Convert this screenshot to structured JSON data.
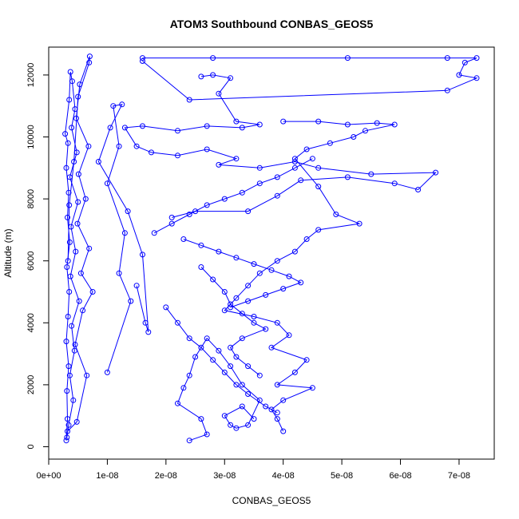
{
  "chart_data": {
    "type": "scatter",
    "title": "ATOM3 Southbound CONBAS_GEOS5",
    "xlabel": "CONBAS_GEOS5",
    "ylabel": "Altitude (m)",
    "xlim": [
      0,
      7.6e-08
    ],
    "ylim": [
      -400,
      12900
    ],
    "x_ticks": [
      {
        "value": 0,
        "label": "0e+00"
      },
      {
        "value": 1e-08,
        "label": "1e-08"
      },
      {
        "value": 2e-08,
        "label": "2e-08"
      },
      {
        "value": 3e-08,
        "label": "3e-08"
      },
      {
        "value": 4e-08,
        "label": "4e-08"
      },
      {
        "value": 5e-08,
        "label": "5e-08"
      },
      {
        "value": 6e-08,
        "label": "6e-08"
      },
      {
        "value": 7e-08,
        "label": "7e-08"
      }
    ],
    "y_ticks": [
      {
        "value": 0,
        "label": "0"
      },
      {
        "value": 2000,
        "label": "2000"
      },
      {
        "value": 4000,
        "label": "4000"
      },
      {
        "value": 6000,
        "label": "6000"
      },
      {
        "value": 8000,
        "label": "8000"
      },
      {
        "value": 10000,
        "label": "10000"
      },
      {
        "value": 12000,
        "label": "12000"
      }
    ],
    "grid": false,
    "marker": "open-circle",
    "connected": true,
    "color": "#0000ff",
    "series": [
      {
        "points": [
          [
            3e-09,
            200
          ],
          [
            3.2e-09,
            900
          ],
          [
            3.1e-09,
            1800
          ],
          [
            3.4e-09,
            2600
          ],
          [
            3e-09,
            3400
          ],
          [
            3.3e-09,
            4200
          ],
          [
            3.5e-09,
            5000
          ],
          [
            3.1e-09,
            5800
          ],
          [
            3.6e-09,
            6600
          ],
          [
            3.2e-09,
            7400
          ],
          [
            3.4e-09,
            8200
          ],
          [
            3e-09,
            9000
          ],
          [
            3.3e-09,
            9800
          ],
          [
            2.8e-09,
            10100
          ],
          [
            3.5e-09,
            11200
          ],
          [
            3.7e-09,
            12100
          ],
          [
            4e-09,
            11800
          ],
          [
            4.5e-09,
            10900
          ],
          [
            3.9e-09,
            10300
          ],
          [
            4.8e-09,
            9500
          ],
          [
            3.6e-09,
            8700
          ],
          [
            5e-09,
            7900
          ],
          [
            3.8e-09,
            7100
          ],
          [
            4.6e-09,
            6300
          ],
          [
            3.7e-09,
            5500
          ],
          [
            5.2e-09,
            4700
          ],
          [
            3.9e-09,
            3900
          ],
          [
            4.4e-09,
            3100
          ],
          [
            3.6e-09,
            2300
          ],
          [
            4.2e-09,
            1500
          ],
          [
            3.4e-09,
            700
          ],
          [
            3.1e-09,
            300
          ]
        ]
      },
      {
        "points": [
          [
            3.2e-09,
            500
          ],
          [
            4.8e-09,
            800
          ],
          [
            6.5e-09,
            2300
          ],
          [
            4.5e-09,
            3300
          ],
          [
            5.8e-09,
            4400
          ],
          [
            7.5e-09,
            5000
          ],
          [
            5.5e-09,
            5600
          ],
          [
            6.9e-09,
            6400
          ],
          [
            4.9e-09,
            7200
          ],
          [
            6.3e-09,
            8000
          ],
          [
            5.1e-09,
            8800
          ],
          [
            6.8e-09,
            9700
          ],
          [
            4.7e-09,
            10600
          ],
          [
            5.3e-09,
            11700
          ],
          [
            7e-09,
            12600
          ],
          [
            6.9e-09,
            12400
          ],
          [
            5e-09,
            11300
          ],
          [
            4.3e-09,
            9200
          ],
          [
            3.5e-09,
            7800
          ],
          [
            3.3e-09,
            6000
          ]
        ]
      },
      {
        "points": [
          [
            1e-08,
            2400
          ],
          [
            1.4e-08,
            4700
          ],
          [
            1.2e-08,
            5600
          ],
          [
            1.3e-08,
            6900
          ],
          [
            1e-08,
            8500
          ],
          [
            1.2e-08,
            9700
          ],
          [
            1.1e-08,
            11000
          ],
          [
            1.25e-08,
            11050
          ],
          [
            1.05e-08,
            10300
          ],
          [
            8.5e-09,
            9200
          ],
          [
            1.35e-08,
            7600
          ],
          [
            1.6e-08,
            6200
          ],
          [
            1.7e-08,
            3700
          ],
          [
            1.65e-08,
            4000
          ],
          [
            1.5e-08,
            5200
          ]
        ]
      },
      {
        "points": [
          [
            1.6e-08,
            12550
          ],
          [
            2.8e-08,
            12550
          ],
          [
            5.1e-08,
            12550
          ],
          [
            6.8e-08,
            12550
          ],
          [
            7.3e-08,
            12550
          ],
          [
            7.1e-08,
            12400
          ],
          [
            7e-08,
            12000
          ],
          [
            7.3e-08,
            11900
          ],
          [
            6.8e-08,
            11500
          ],
          [
            2.4e-08,
            11200
          ],
          [
            1.6e-08,
            12450
          ]
        ]
      },
      {
        "points": [
          [
            2.6e-08,
            11950
          ],
          [
            2.8e-08,
            12000
          ],
          [
            3.1e-08,
            11900
          ],
          [
            2.9e-08,
            11400
          ],
          [
            3.2e-08,
            10500
          ],
          [
            3.6e-08,
            10400
          ],
          [
            3.3e-08,
            10300
          ],
          [
            2.7e-08,
            10350
          ],
          [
            2.2e-08,
            10200
          ],
          [
            1.6e-08,
            10350
          ],
          [
            1.3e-08,
            10300
          ],
          [
            1.5e-08,
            9700
          ],
          [
            1.75e-08,
            9500
          ],
          [
            2.2e-08,
            9400
          ],
          [
            2.7e-08,
            9600
          ],
          [
            3.2e-08,
            9300
          ],
          [
            2.9e-08,
            9100
          ],
          [
            3.6e-08,
            9000
          ],
          [
            4.2e-08,
            9200
          ],
          [
            4.6e-08,
            9000
          ],
          [
            5.5e-08,
            8800
          ],
          [
            6.6e-08,
            8850
          ],
          [
            6.3e-08,
            8300
          ],
          [
            5.9e-08,
            8500
          ],
          [
            5.1e-08,
            8700
          ],
          [
            4.3e-08,
            8600
          ],
          [
            3.9e-08,
            8100
          ],
          [
            3.4e-08,
            7600
          ],
          [
            2.5e-08,
            7600
          ],
          [
            2.1e-08,
            7400
          ]
        ]
      },
      {
        "points": [
          [
            4e-08,
            10500
          ],
          [
            4.6e-08,
            10500
          ],
          [
            5.1e-08,
            10400
          ],
          [
            5.6e-08,
            10450
          ],
          [
            5.9e-08,
            10400
          ],
          [
            5.4e-08,
            10200
          ],
          [
            5.2e-08,
            10000
          ],
          [
            4.8e-08,
            9800
          ],
          [
            4.4e-08,
            9600
          ],
          [
            4.2e-08,
            9300
          ],
          [
            4.6e-08,
            8400
          ],
          [
            4.9e-08,
            7500
          ],
          [
            5.3e-08,
            7200
          ],
          [
            4.6e-08,
            7000
          ],
          [
            4.4e-08,
            6700
          ],
          [
            4.2e-08,
            6300
          ],
          [
            3.9e-08,
            6000
          ],
          [
            3.6e-08,
            5600
          ],
          [
            3.4e-08,
            5200
          ],
          [
            3.2e-08,
            4800
          ],
          [
            3e-08,
            4400
          ],
          [
            3.5e-08,
            4200
          ],
          [
            3.9e-08,
            4000
          ],
          [
            4.1e-08,
            3600
          ],
          [
            3.8e-08,
            3200
          ],
          [
            4.4e-08,
            2800
          ],
          [
            4.2e-08,
            2400
          ],
          [
            3.9e-08,
            2000
          ],
          [
            4.5e-08,
            1900
          ],
          [
            4e-08,
            1500
          ],
          [
            3.8e-08,
            1200
          ],
          [
            3.9e-08,
            900
          ],
          [
            4e-08,
            500
          ]
        ]
      },
      {
        "points": [
          [
            3.5e-08,
            900
          ],
          [
            3.3e-08,
            1300
          ],
          [
            3e-08,
            1000
          ],
          [
            3.1e-08,
            700
          ],
          [
            3.2e-08,
            600
          ],
          [
            3.4e-08,
            700
          ],
          [
            3.6e-08,
            1500
          ],
          [
            3.3e-08,
            2000
          ],
          [
            3.1e-08,
            2600
          ],
          [
            2.9e-08,
            3100
          ],
          [
            2.7e-08,
            3500
          ],
          [
            2.5e-08,
            2900
          ],
          [
            2.4e-08,
            2300
          ],
          [
            2.3e-08,
            1900
          ],
          [
            2.2e-08,
            1400
          ],
          [
            2.6e-08,
            900
          ],
          [
            2.7e-08,
            400
          ],
          [
            2.4e-08,
            200
          ]
        ]
      },
      {
        "points": [
          [
            2e-08,
            4500
          ],
          [
            2.2e-08,
            4000
          ],
          [
            2.4e-08,
            3500
          ],
          [
            2.6e-08,
            3200
          ],
          [
            2.8e-08,
            2800
          ],
          [
            3e-08,
            2400
          ],
          [
            3.2e-08,
            2000
          ],
          [
            3.4e-08,
            1700
          ],
          [
            3.7e-08,
            1300
          ],
          [
            3.9e-08,
            1100
          ]
        ]
      },
      {
        "points": [
          [
            2.6e-08,
            5800
          ],
          [
            2.8e-08,
            5400
          ],
          [
            3e-08,
            5000
          ],
          [
            3.1e-08,
            4600
          ],
          [
            3.3e-08,
            4300
          ],
          [
            3.5e-08,
            4000
          ],
          [
            3.7e-08,
            3800
          ],
          [
            3.3e-08,
            3500
          ],
          [
            3.1e-08,
            3200
          ],
          [
            3.2e-08,
            2900
          ],
          [
            3.4e-08,
            2600
          ],
          [
            3.6e-08,
            2300
          ]
        ]
      },
      {
        "points": [
          [
            2.3e-08,
            6700
          ],
          [
            2.6e-08,
            6500
          ],
          [
            2.9e-08,
            6300
          ],
          [
            3.2e-08,
            6100
          ],
          [
            3.5e-08,
            5900
          ],
          [
            3.8e-08,
            5700
          ],
          [
            4.1e-08,
            5500
          ],
          [
            4.3e-08,
            5300
          ],
          [
            4e-08,
            5100
          ],
          [
            3.7e-08,
            4900
          ],
          [
            3.4e-08,
            4700
          ],
          [
            3.1e-08,
            4500
          ]
        ]
      },
      {
        "points": [
          [
            1.8e-08,
            6900
          ],
          [
            2.1e-08,
            7200
          ],
          [
            2.4e-08,
            7500
          ],
          [
            2.7e-08,
            7800
          ],
          [
            3e-08,
            8000
          ],
          [
            3.3e-08,
            8200
          ],
          [
            3.6e-08,
            8500
          ],
          [
            3.9e-08,
            8700
          ],
          [
            4.2e-08,
            9000
          ],
          [
            4.5e-08,
            9300
          ]
        ]
      }
    ]
  }
}
